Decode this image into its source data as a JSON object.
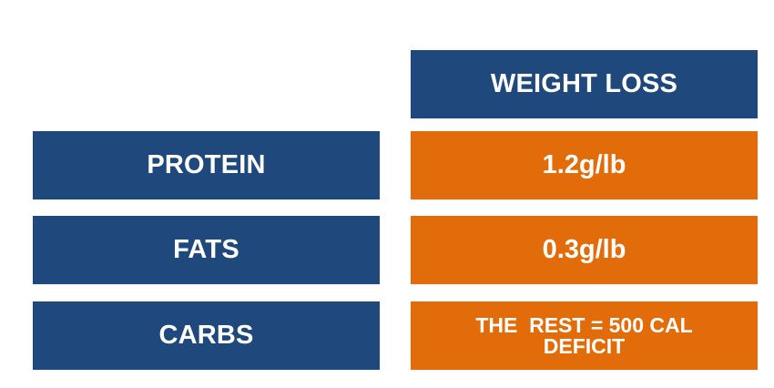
{
  "colors": {
    "blue": "#1f497d",
    "orange": "#e36c0a"
  },
  "header": {
    "weight_loss": "WEIGHT LOSS"
  },
  "rows": [
    {
      "label": "PROTEIN",
      "value": "1.2g/lb"
    },
    {
      "label": "FATS",
      "value": "0.3g/lb"
    },
    {
      "label": "CARBS",
      "value_line1": "THE  REST = 500 CAL",
      "value_line2": "DEFICIT"
    }
  ]
}
